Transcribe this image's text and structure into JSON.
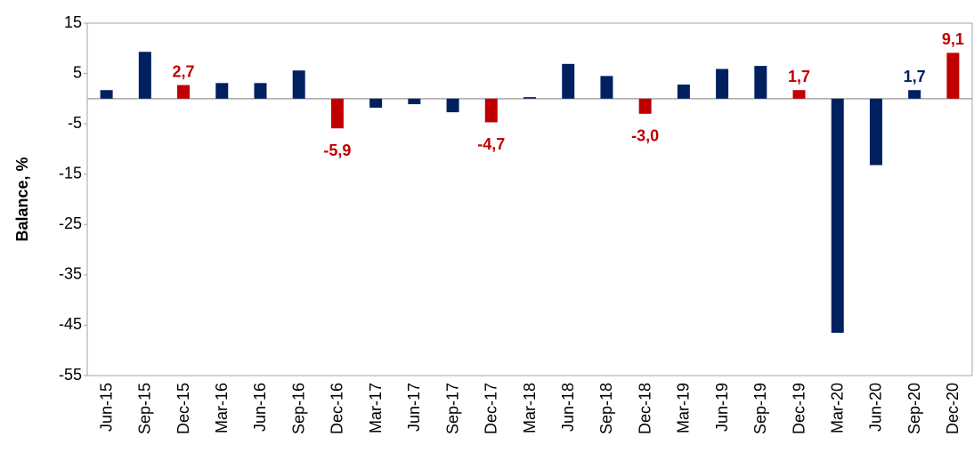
{
  "chart_data": {
    "type": "bar",
    "y_label": "Balance, %",
    "categories": [
      "Jun-15",
      "Sep-15",
      "Dec-15",
      "Mar-16",
      "Jun-16",
      "Sep-16",
      "Dec-16",
      "Mar-17",
      "Jun-17",
      "Sep-17",
      "Dec-17",
      "Mar-18",
      "Jun-18",
      "Sep-18",
      "Dec-18",
      "Mar-19",
      "Jun-19",
      "Sep-19",
      "Dec-19",
      "Mar-20",
      "Jun-20",
      "Sep-20",
      "Dec-20"
    ],
    "values": [
      1.7,
      9.3,
      2.7,
      3.1,
      3.1,
      5.6,
      -5.9,
      -1.8,
      -1.1,
      -2.7,
      -4.7,
      0.3,
      6.9,
      4.5,
      -3.0,
      2.8,
      5.9,
      6.5,
      1.7,
      -46.5,
      -13.2,
      1.7,
      9.1
    ],
    "value_labels": [
      null,
      null,
      "2,7",
      null,
      null,
      null,
      "-5,9",
      null,
      null,
      null,
      "-4,7",
      null,
      null,
      null,
      "-3,0",
      null,
      null,
      null,
      "1,7",
      null,
      null,
      "1,7",
      "9,1"
    ],
    "colors": [
      "#002060",
      "#002060",
      "#c00000",
      "#002060",
      "#002060",
      "#002060",
      "#c00000",
      "#002060",
      "#002060",
      "#002060",
      "#c00000",
      "#002060",
      "#002060",
      "#002060",
      "#c00000",
      "#002060",
      "#002060",
      "#002060",
      "#c00000",
      "#002060",
      "#002060",
      "#002060",
      "#c00000"
    ],
    "ylim": [
      -55,
      15
    ],
    "yticks": [
      -55,
      -45,
      -35,
      -25,
      -15,
      -5,
      5,
      15
    ]
  }
}
